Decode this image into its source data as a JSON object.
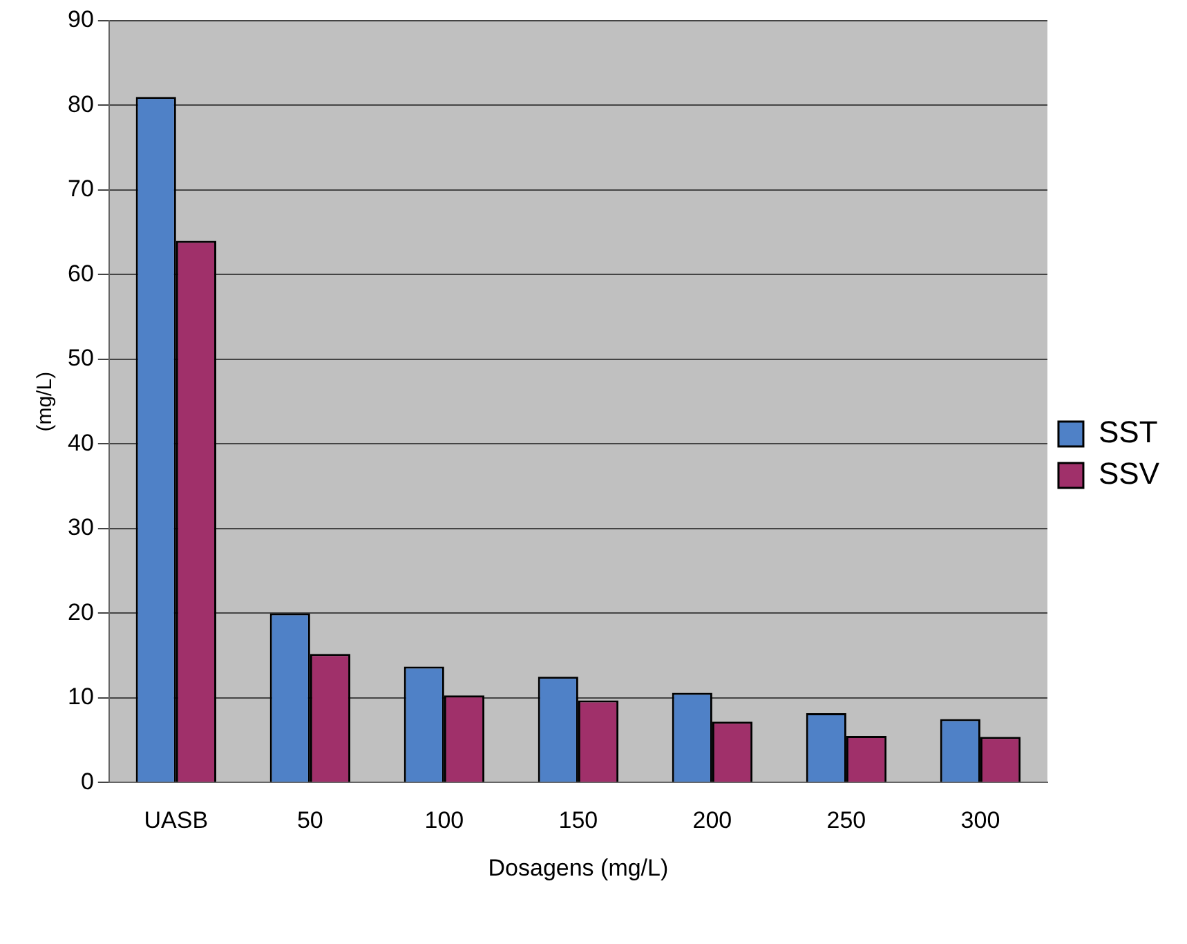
{
  "chart_data": {
    "type": "bar",
    "xlabel": "Dosagens (mg/L)",
    "ylabel": "(mg/L)",
    "categories": [
      "UASB",
      "50",
      "100",
      "150",
      "200",
      "250",
      "300"
    ],
    "series": [
      {
        "name": "SST",
        "color": "#4f81c7",
        "values": [
          81,
          20,
          13.7,
          12.5,
          10.6,
          8.2,
          7.5
        ]
      },
      {
        "name": "SSV",
        "color": "#a0306a",
        "values": [
          64,
          15.2,
          10.3,
          9.7,
          7.2,
          5.5,
          5.4
        ]
      }
    ],
    "ylim": [
      0,
      90
    ],
    "yticks": [
      0,
      10,
      20,
      30,
      40,
      50,
      60,
      70,
      80,
      90
    ],
    "grid": "y",
    "legend": "right"
  }
}
